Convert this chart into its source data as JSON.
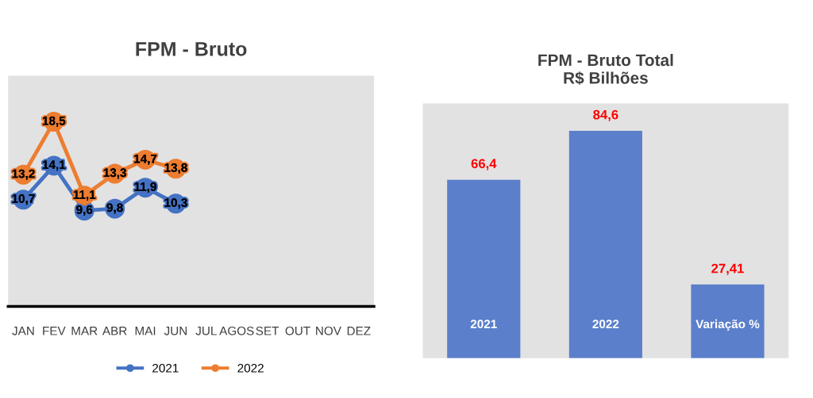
{
  "chart_data": [
    {
      "type": "line",
      "title": "FPM - Bruto",
      "categories": [
        "JAN",
        "FEV",
        "MAR",
        "ABR",
        "MAI",
        "JUN",
        "JUL",
        "AGOS",
        "SET",
        "OUT",
        "NOV",
        "DEZ"
      ],
      "series": [
        {
          "name": "2021",
          "color": "#4472c4",
          "values": [
            10.7,
            14.1,
            9.6,
            9.8,
            11.9,
            10.3,
            null,
            null,
            null,
            null,
            null,
            null
          ],
          "value_labels": [
            "10,7",
            "14,1",
            "9,6",
            "9,8",
            "11,9",
            "10,3",
            null,
            null,
            null,
            null,
            null,
            null
          ]
        },
        {
          "name": "2022",
          "color": "#ed7d31",
          "values": [
            13.2,
            18.5,
            11.1,
            13.3,
            14.7,
            13.8,
            null,
            null,
            null,
            null,
            null,
            null
          ],
          "value_labels": [
            "13,2",
            "18,5",
            "11,1",
            "13,3",
            "14,7",
            "13,8",
            null,
            null,
            null,
            null,
            null,
            null
          ]
        }
      ],
      "marker": "circle",
      "line_style": "solid",
      "legend": "bottom",
      "grid": false,
      "tick_labels": "x"
    },
    {
      "type": "bar",
      "title": "FPM - Bruto Total\nR$ Bilhões",
      "categories": [
        "2021",
        "2022",
        "Variação %"
      ],
      "series": [
        {
          "color": "#5b7fcb",
          "values": [
            66.4,
            84.6,
            27.41
          ],
          "value_labels": [
            "66,4",
            "84,6",
            "27,41"
          ]
        }
      ],
      "legend": false,
      "grid": false,
      "tick_labels": false
    }
  ]
}
